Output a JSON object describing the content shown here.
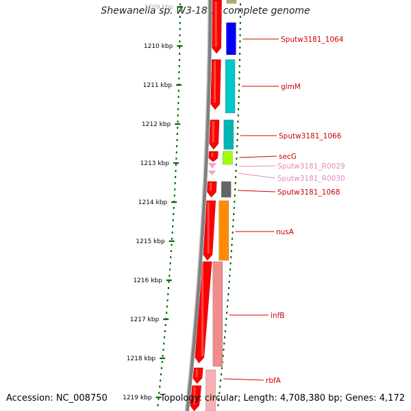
{
  "title": "Shewanella sp. W3-18-1, complete genome",
  "accession": "Accession: NC_008750",
  "summary": "Topology: circular; Length: 4,708,380 bp; Genes: 4,172",
  "ruler": {
    "ticks": [
      {
        "label": "1209 kbp",
        "faded": true
      },
      {
        "label": "1210 kbp"
      },
      {
        "label": "1211 kbp"
      },
      {
        "label": "1212 kbp"
      },
      {
        "label": "1213 kbp"
      },
      {
        "label": "1214 kbp"
      },
      {
        "label": "1215 kbp"
      },
      {
        "label": "1216 kbp"
      },
      {
        "label": "1217 kbp"
      },
      {
        "label": "1218 kbp"
      },
      {
        "label": "1219 kbp"
      }
    ]
  },
  "genes": [
    {
      "name": "Sputw3181_1064",
      "color": "#cc0000"
    },
    {
      "name": "glmM",
      "color": "#cc0000"
    },
    {
      "name": "Sputw3181_1066",
      "color": "#cc0000"
    },
    {
      "name": "secG",
      "color": "#cc0000"
    },
    {
      "name": "Sputw3181_R0029",
      "color": "#ee88bb"
    },
    {
      "name": "Sputw3181_R0030",
      "color": "#ee88bb"
    },
    {
      "name": "Sputw3181_1068",
      "color": "#cc0000"
    },
    {
      "name": "nusA",
      "color": "#cc0000"
    },
    {
      "name": "infB",
      "color": "#cc0000"
    },
    {
      "name": "rbfA",
      "color": "#cc0000"
    }
  ],
  "colors": {
    "backbone": "#808080",
    "cds": "#ff0000",
    "rna": "#f7a1cc",
    "ticks": "#006600"
  }
}
